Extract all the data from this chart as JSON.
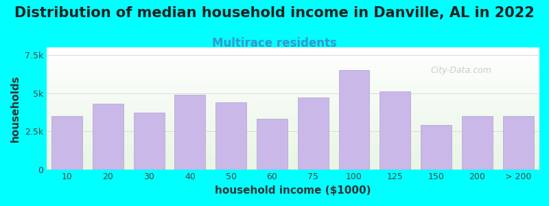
{
  "title": "Distribution of median household income in Danville, AL in 2022",
  "subtitle": "Multirace residents",
  "xlabel": "household income ($1000)",
  "ylabel": "households",
  "bar_color": "#c9b8e8",
  "bar_edge_color": "#b0a0d0",
  "background_color": "#00ffff",
  "plot_bg_color_top": "#e8f5e8",
  "plot_bg_color_bottom": "#ffffff",
  "categories": [
    "10",
    "20",
    "30",
    "40",
    "50",
    "60",
    "75",
    "100",
    "125",
    "150",
    "200",
    "> 200"
  ],
  "values": [
    3500,
    4300,
    3700,
    4900,
    4400,
    3300,
    4700,
    6500,
    5100,
    2900,
    3500,
    3500
  ],
  "ylim": [
    0,
    8000
  ],
  "yticks": [
    0,
    2500,
    5000,
    7500
  ],
  "ytick_labels": [
    "0",
    "2.5k",
    "5k",
    "7.5k"
  ],
  "title_fontsize": 15,
  "subtitle_fontsize": 12,
  "axis_label_fontsize": 11,
  "tick_fontsize": 9,
  "watermark": "City-Data.com"
}
